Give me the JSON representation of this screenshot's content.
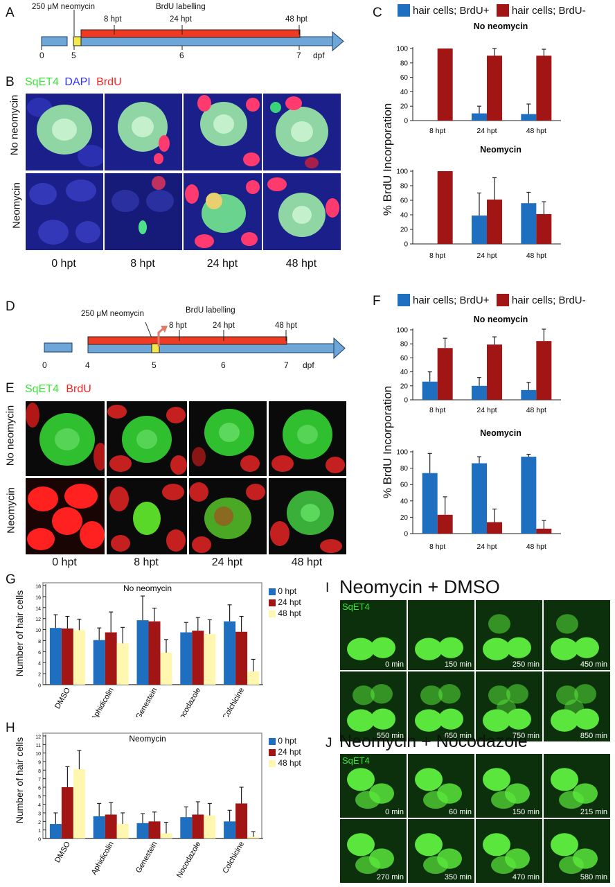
{
  "panels": {
    "A": "A",
    "B": "B",
    "C": "C",
    "D": "D",
    "E": "E",
    "F": "F",
    "G": "G",
    "H": "H",
    "I": "I",
    "J": "J"
  },
  "timeline_a": {
    "treatment": "250 μM neomycin",
    "labelling": "BrdU labelling",
    "marks": [
      "8 hpt",
      "24 hpt",
      "48 hpt"
    ],
    "axis": [
      "0",
      "5",
      "6",
      "7"
    ],
    "unit": "dpf"
  },
  "timeline_d": {
    "treatment": "250 μM neomycin",
    "labelling": "BrdU labelling",
    "marks": [
      "8 hpt",
      "24 hpt",
      "48 hpt"
    ],
    "axis": [
      "0",
      "4",
      "5",
      "6",
      "7"
    ],
    "unit": "dpf"
  },
  "panel_b": {
    "stains": [
      "SqET4",
      "DAPI",
      "BrdU"
    ],
    "stain_colors": [
      "#39e639",
      "#3030ff",
      "#ff2020"
    ],
    "rows": [
      "No neomycin",
      "Neomycin"
    ],
    "cols": [
      "0 hpt",
      "8 hpt",
      "24 hpt",
      "48 hpt"
    ]
  },
  "panel_e": {
    "stains": [
      "SqET4",
      "BrdU"
    ],
    "stain_colors": [
      "#39e639",
      "#ff2020"
    ],
    "rows": [
      "No neomycin",
      "Neomycin"
    ],
    "cols": [
      "0 hpt",
      "8 hpt",
      "24 hpt",
      "48 hpt"
    ]
  },
  "legend_cf": {
    "entries": [
      "hair cells; BrdU+",
      "hair cells; BrdU-"
    ],
    "colors": [
      "#1f6fc0",
      "#a11515"
    ]
  },
  "legend_gh": {
    "entries": [
      "0 hpt",
      "24 hpt",
      "48 hpt"
    ],
    "colors": [
      "#1f6fc0",
      "#a11515",
      "#fff6b0"
    ]
  },
  "shared_labels": {
    "ylabel_cf": "% BrdU Incorporation",
    "ylabel_gh": "Number of hair cells"
  },
  "chart_data": [
    {
      "id": "C1",
      "type": "bar",
      "title": "No neomycin",
      "categories": [
        "8 hpt",
        "24 hpt",
        "48 hpt"
      ],
      "ylim": [
        0,
        100
      ],
      "yticks": [
        0,
        20,
        40,
        60,
        80,
        100
      ],
      "series": [
        {
          "name": "hair cells; BrdU+",
          "values": [
            0,
            10,
            9
          ],
          "errors": [
            0,
            10,
            14
          ]
        },
        {
          "name": "hair cells; BrdU-",
          "values": [
            100,
            90,
            90
          ],
          "errors": [
            0,
            10,
            9
          ]
        }
      ]
    },
    {
      "id": "C2",
      "type": "bar",
      "title": "Neomycin",
      "categories": [
        "8 hpt",
        "24 hpt",
        "48 hpt"
      ],
      "ylim": [
        0,
        100
      ],
      "yticks": [
        0,
        20,
        40,
        60,
        80,
        100
      ],
      "series": [
        {
          "name": "hair cells; BrdU+",
          "values": [
            0,
            39,
            56
          ],
          "errors": [
            0,
            31,
            15
          ]
        },
        {
          "name": "hair cells; BrdU-",
          "values": [
            100,
            61,
            41
          ],
          "errors": [
            0,
            30,
            17
          ]
        }
      ]
    },
    {
      "id": "F1",
      "type": "bar",
      "title": "No neomycin",
      "categories": [
        "8 hpt",
        "24 hpt",
        "48 hpt"
      ],
      "ylim": [
        0,
        100
      ],
      "yticks": [
        0,
        20,
        40,
        60,
        80,
        100
      ],
      "series": [
        {
          "name": "hair cells; BrdU+",
          "values": [
            26,
            20,
            14
          ],
          "errors": [
            14,
            12,
            11
          ]
        },
        {
          "name": "hair cells; BrdU-",
          "values": [
            74,
            79,
            84
          ],
          "errors": [
            14,
            11,
            17
          ]
        }
      ]
    },
    {
      "id": "F2",
      "type": "bar",
      "title": "Neomycin",
      "categories": [
        "8 hpt",
        "24 hpt",
        "48 hpt"
      ],
      "ylim": [
        0,
        100
      ],
      "yticks": [
        0,
        20,
        40,
        60,
        80,
        100
      ],
      "series": [
        {
          "name": "hair cells; BrdU+",
          "values": [
            74,
            86,
            94
          ],
          "errors": [
            24,
            8,
            3
          ]
        },
        {
          "name": "hair cells; BrdU-",
          "values": [
            23,
            14,
            6
          ],
          "errors": [
            22,
            16,
            10
          ]
        }
      ]
    },
    {
      "id": "G",
      "type": "bar",
      "title": "No neomycin",
      "categories": [
        "DMSO",
        "Aphidicolin",
        "Genestein",
        "Nocodazole",
        "Colchicine"
      ],
      "ylim": [
        0,
        18
      ],
      "yticks": [
        0,
        2,
        4,
        6,
        8,
        10,
        12,
        14,
        16,
        18
      ],
      "series": [
        {
          "name": "0 hpt",
          "values": [
            10.3,
            8.1,
            11.7,
            9.5,
            11.5
          ],
          "errors": [
            2.4,
            2.2,
            4.4,
            1.8,
            3.0
          ]
        },
        {
          "name": "24 hpt",
          "values": [
            10.2,
            9.5,
            11.5,
            9.8,
            9.6
          ],
          "errors": [
            2.2,
            3.7,
            2.4,
            2.4,
            2.8
          ]
        },
        {
          "name": "48 hpt",
          "values": [
            9.9,
            7.5,
            5.8,
            9.2,
            2.4
          ],
          "errors": [
            2.0,
            2.9,
            2.4,
            2.6,
            2.2
          ]
        }
      ]
    },
    {
      "id": "H",
      "type": "bar",
      "title": "Neomycin",
      "categories": [
        "DMSO",
        "Aphidicolin",
        "Genestein",
        "Nocodazole",
        "Colchicine"
      ],
      "ylim": [
        0,
        12
      ],
      "yticks": [
        0,
        1,
        2,
        3,
        4,
        5,
        6,
        7,
        8,
        9,
        10,
        11,
        12
      ],
      "series": [
        {
          "name": "0 hpt",
          "values": [
            1.7,
            2.6,
            1.8,
            2.5,
            2.0
          ],
          "errors": [
            1.3,
            1.5,
            1.1,
            1.2,
            1.3
          ]
        },
        {
          "name": "24 hpt",
          "values": [
            6.0,
            2.8,
            2.0,
            2.8,
            4.1
          ],
          "errors": [
            2.4,
            1.4,
            1.1,
            1.5,
            1.9
          ]
        },
        {
          "name": "48 hpt",
          "values": [
            8.1,
            1.7,
            0.6,
            2.7,
            0.2
          ],
          "errors": [
            2.2,
            1.3,
            1.3,
            1.4,
            0.6
          ]
        }
      ]
    }
  ],
  "panel_i": {
    "title": "Neomycin + DMSO",
    "stain": "SqET4",
    "times": [
      "0 min",
      "150 min",
      "250 min",
      "450 min",
      "550 min",
      "650 min",
      "750 min",
      "850 min"
    ]
  },
  "panel_j": {
    "title": "Neomycin + Nocodazole",
    "stain": "SqET4",
    "times": [
      "0 min",
      "60 min",
      "150 min",
      "215 min",
      "270 min",
      "350 min",
      "470 min",
      "580 min"
    ]
  }
}
